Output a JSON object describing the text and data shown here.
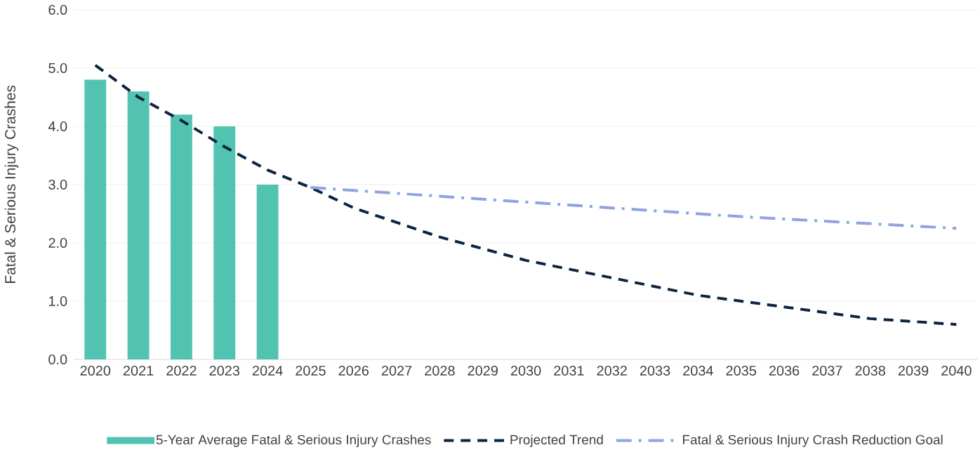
{
  "chart_data": {
    "type": "bar",
    "ylabel": "Fatal & Serious Injury Crashes",
    "categories": [
      "2020",
      "2021",
      "2022",
      "2023",
      "2024",
      "2025",
      "2026",
      "2027",
      "2028",
      "2029",
      "2030",
      "2031",
      "2032",
      "2033",
      "2034",
      "2035",
      "2036",
      "2037",
      "2038",
      "2039",
      "2040"
    ],
    "series": [
      {
        "name": "5-Year Average Fatal & Serious Injury Crashes",
        "type": "bar",
        "color": "#52c3b1",
        "values": [
          4.8,
          4.6,
          4.2,
          4.0,
          3.0,
          null,
          null,
          null,
          null,
          null,
          null,
          null,
          null,
          null,
          null,
          null,
          null,
          null,
          null,
          null,
          null
        ]
      },
      {
        "name": "Projected Trend",
        "type": "line",
        "color": "#0d2440",
        "line_style": "dashed",
        "values": [
          5.05,
          4.5,
          4.1,
          3.65,
          3.25,
          2.95,
          2.6,
          2.35,
          2.1,
          1.9,
          1.7,
          1.55,
          1.4,
          1.25,
          1.1,
          1.0,
          0.9,
          0.8,
          0.7,
          0.65,
          0.6
        ]
      },
      {
        "name": "Fatal & Serious Injury Crash Reduction Goal",
        "type": "line",
        "color": "#8fa3e0",
        "line_style": "dashdot",
        "values": [
          null,
          null,
          null,
          null,
          null,
          2.95,
          2.9,
          2.85,
          2.8,
          2.75,
          2.7,
          2.65,
          2.6,
          2.55,
          2.5,
          2.45,
          2.41,
          2.37,
          2.33,
          2.29,
          2.25
        ]
      }
    ],
    "ylim": [
      0,
      6
    ],
    "yticks": [
      {
        "value": 0,
        "label": "0.0"
      },
      {
        "value": 1,
        "label": "1.0"
      },
      {
        "value": 2,
        "label": "2.0"
      },
      {
        "value": 3,
        "label": "3.0"
      },
      {
        "value": 4,
        "label": "4.0"
      },
      {
        "value": 5,
        "label": "5.0"
      },
      {
        "value": 6,
        "label": "6.0"
      }
    ],
    "grid": "y",
    "legend": "bottom",
    "marker": "none"
  }
}
